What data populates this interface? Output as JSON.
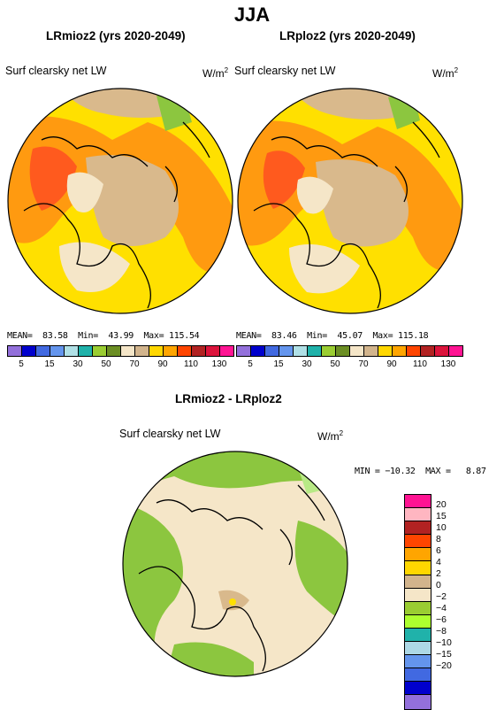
{
  "page_title": "JJA",
  "panel_left": {
    "title": "LRmioz2 (yrs 2020-2049)",
    "variable": "Surf clearsky net LW",
    "stats": "MEAN=  83.58  Min=  43.99  Max= 115.54"
  },
  "panel_right": {
    "title": "LRploz2 (yrs 2020-2049)",
    "variable": "Surf clearsky net LW",
    "stats": "MEAN=  83.46  Min=  45.07  Max= 115.18"
  },
  "units_base": "W/m",
  "units_exp": "2",
  "top_colorbar": {
    "colors": [
      "#9370DB",
      "#0000CD",
      "#4169E1",
      "#6495ED",
      "#B0E0E6",
      "#20B2AA",
      "#9ACD32",
      "#6B8E23",
      "#F5E6C8",
      "#D2B48C",
      "#FFD700",
      "#FFA500",
      "#FF4500",
      "#B22222",
      "#DC143C",
      "#FF1493"
    ],
    "ticks": [
      "5",
      "15",
      "30",
      "50",
      "70",
      "90",
      "110",
      "130"
    ]
  },
  "diff_panel": {
    "title": "LRmioz2 - LRploz2",
    "variable": "Surf clearsky net LW",
    "stats": "MIN = −10.32  MAX =   8.87"
  },
  "diff_colorbar": {
    "colors": [
      "#FF1493",
      "#FFB6C1",
      "#B22222",
      "#FF4500",
      "#FFA500",
      "#FFD700",
      "#D2B48C",
      "#F5E6C8",
      "#9ACD32",
      "#ADFF2F",
      "#20B2AA",
      "#ADD8E6",
      "#6495ED",
      "#4169E1",
      "#0000CD",
      "#9370DB"
    ],
    "ticks": [
      "20",
      "15",
      "10",
      "8",
      "6",
      "4",
      "2",
      "0",
      "−2",
      "−4",
      "−6",
      "−8",
      "−10",
      "−15",
      "−20"
    ]
  },
  "map_colors": {
    "tan": "#D9B98C",
    "cream": "#F5E6C8",
    "yellow": "#FFE000",
    "orange": "#FF9A10",
    "redorange": "#FF5A1E",
    "green": "#8CC63F",
    "lightgreen": "#B8E986"
  }
}
